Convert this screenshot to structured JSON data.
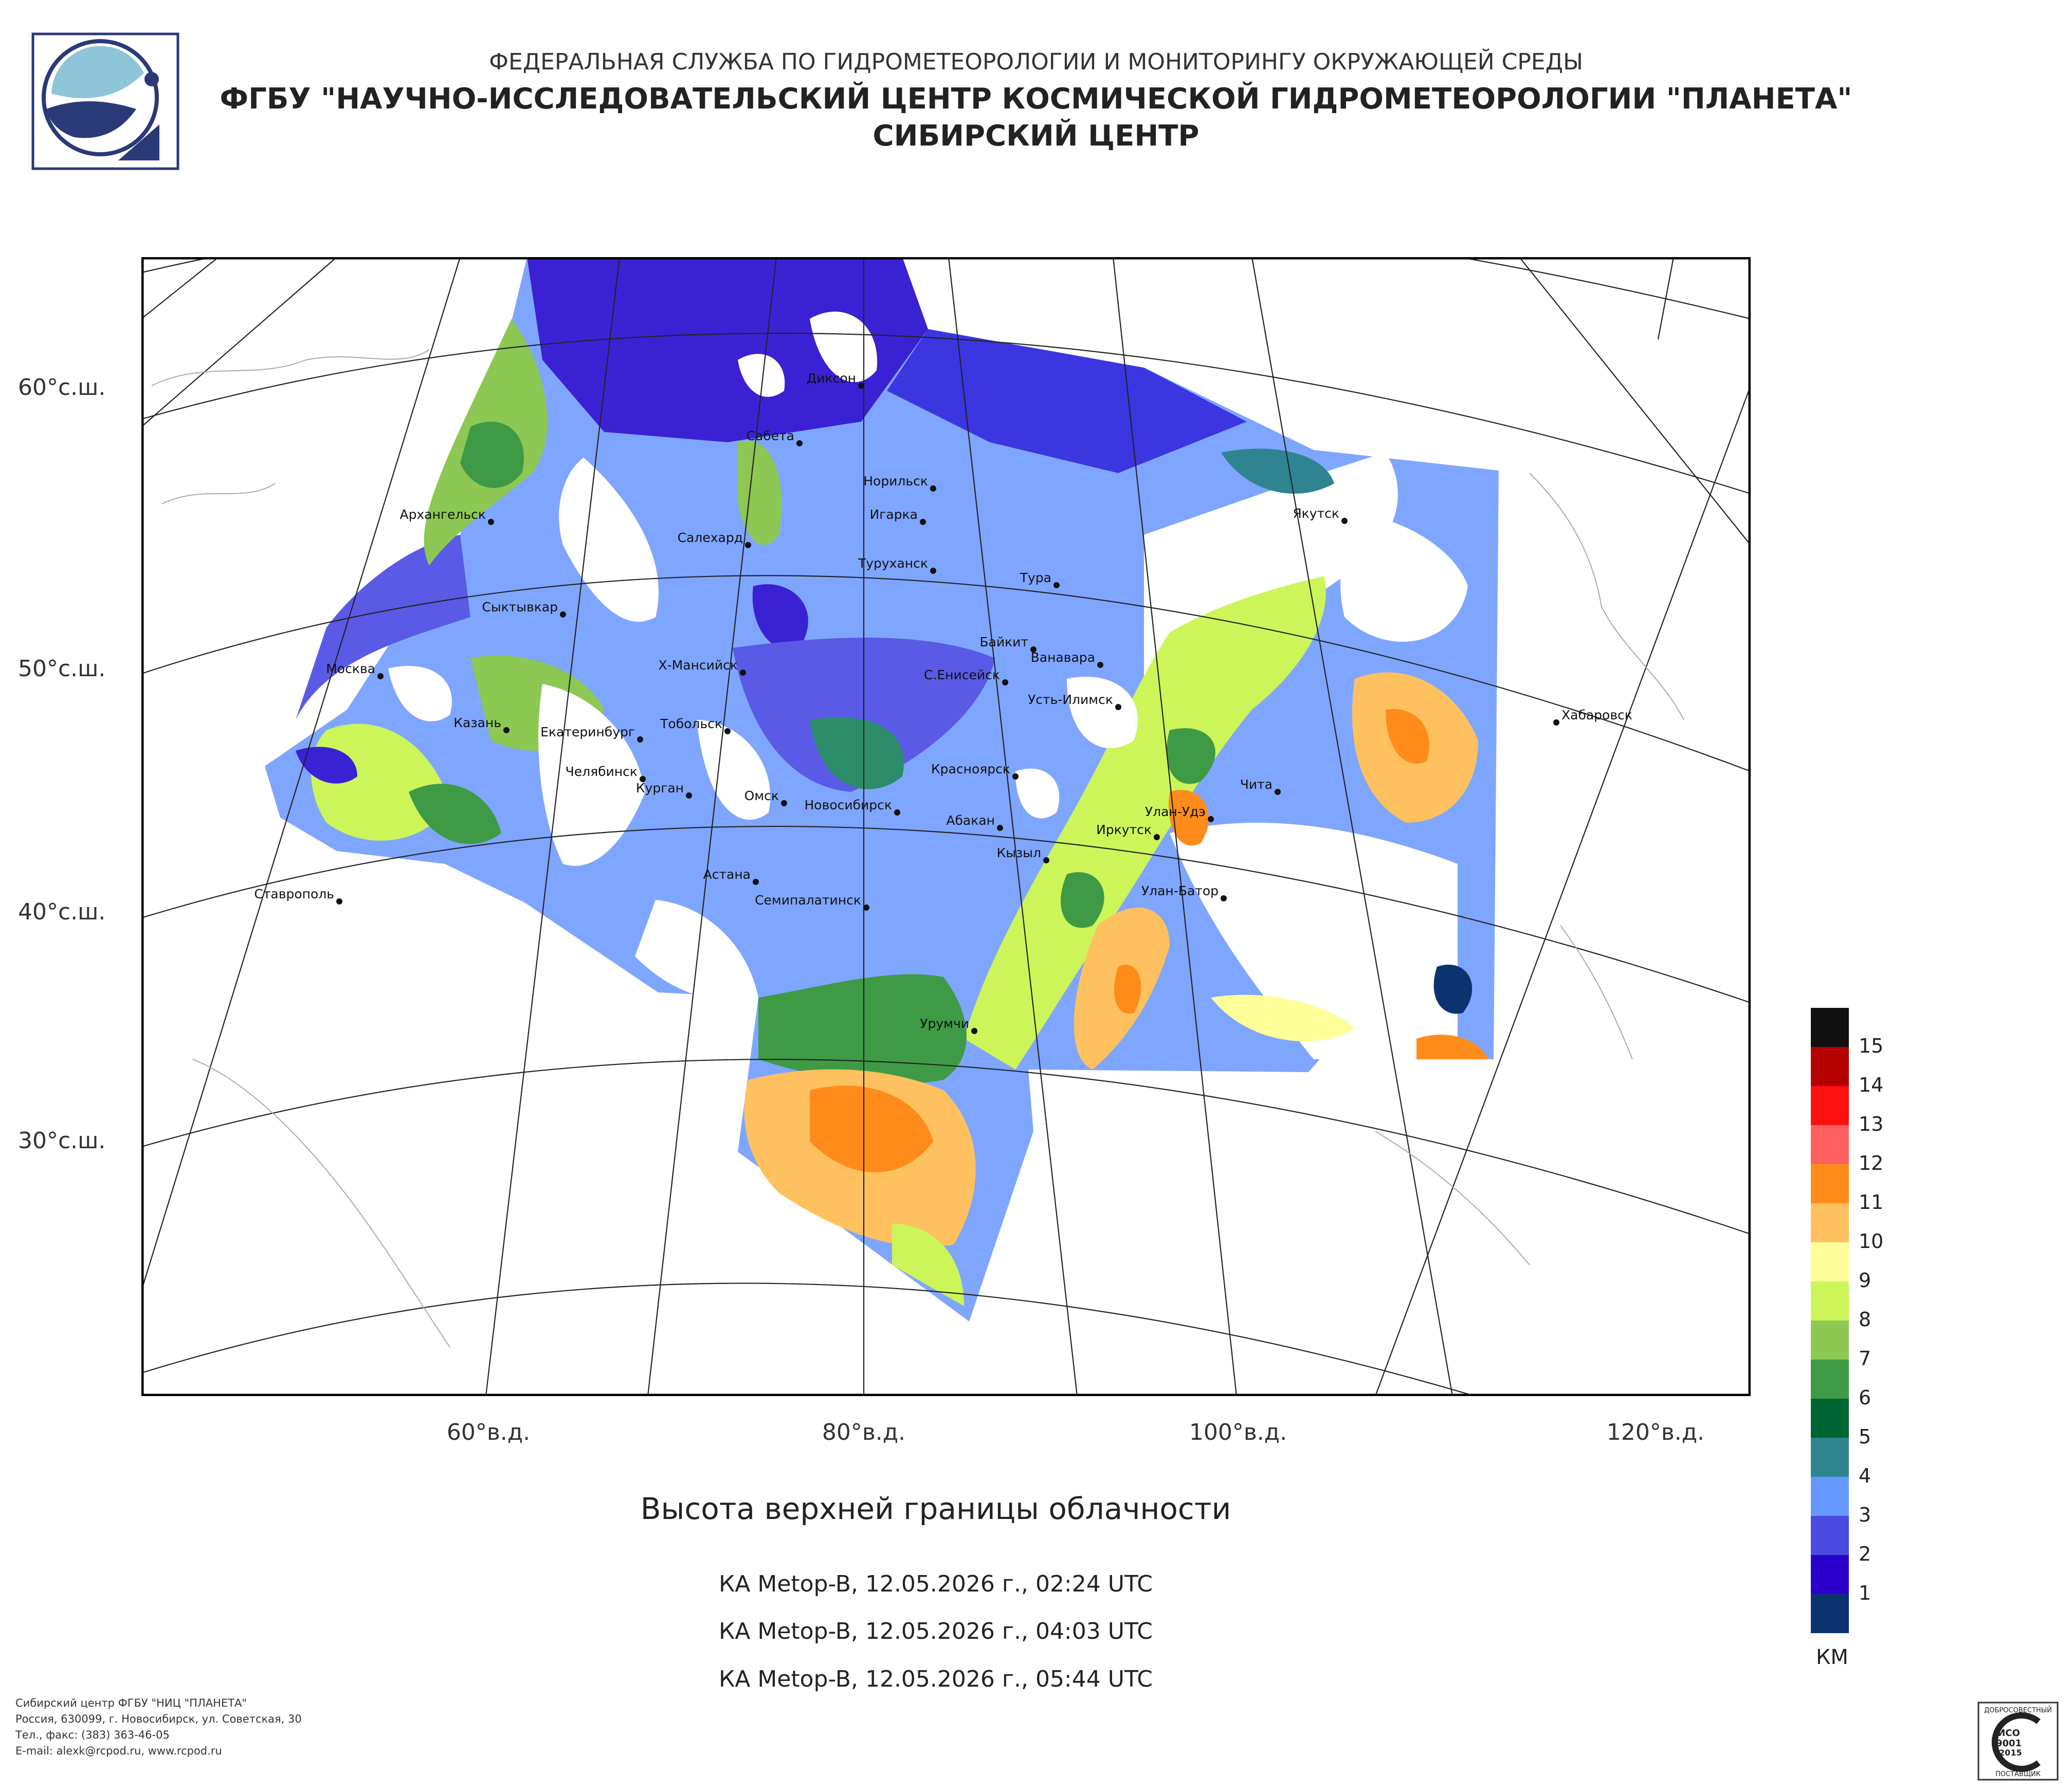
{
  "header": {
    "line1": "ФЕДЕРАЛЬНАЯ СЛУЖБА ПО ГИДРОМЕТЕОРОЛОГИИ И МОНИТОРИНГУ ОКРУЖАЮЩЕЙ СРЕДЫ",
    "line2": "ФГБУ \"НАУЧНО-ИССЛЕДОВАТЕЛЬСКИЙ ЦЕНТР КОСМИЧЕСКОЙ ГИДРОМЕТЕОРОЛОГИИ \"ПЛАНЕТА\"",
    "line3": "СИБИРСКИЙ ЦЕНТР"
  },
  "map": {
    "title": "Высота верхней границы облачности",
    "passes": [
      "КА Metop-B, 12.05.2026 г., 02:24 UTC",
      "КА Metop-B, 12.05.2026 г., 04:03 UTC",
      "КА Metop-B, 12.05.2026 г., 05:44 UTC"
    ],
    "latitude_labels": [
      "60°с.ш.",
      "50°с.ш.",
      "40°с.ш.",
      "30°с.ш."
    ],
    "longitude_labels": [
      "60°в.д.",
      "80°в.д.",
      "100°в.д.",
      "120°в.д."
    ],
    "cities": [
      "Диксон",
      "Сабета",
      "Норильск",
      "Игарка",
      "Архангельск",
      "Салехард",
      "Туруханск",
      "Тура",
      "Якутск",
      "Сыктывкар",
      "Байкит",
      "Ванавара",
      "Москва",
      "Х-Мансийск",
      "С.Енисейск",
      "Усть-Илимск",
      "Хабаровск",
      "Казань",
      "Тобольск",
      "Екатеринбург",
      "Красноярск",
      "Чита",
      "Челябинск",
      "Курган",
      "Омск",
      "Новосибирск",
      "Абакан",
      "Улан-Удэ",
      "Иркутск",
      "Кызыл",
      "Астана",
      "Ставрополь",
      "Семипалатинск",
      "Улан-Батор",
      "Урумчи"
    ]
  },
  "legend": {
    "unit": "КМ",
    "levels": [
      {
        "value": "15",
        "color": "#111111"
      },
      {
        "value": "14",
        "color": "#b50000"
      },
      {
        "value": "13",
        "color": "#ff1010"
      },
      {
        "value": "12",
        "color": "#ff6060"
      },
      {
        "value": "11",
        "color": "#ff8c1a"
      },
      {
        "value": "10",
        "color": "#ffc160"
      },
      {
        "value": "9",
        "color": "#ffff99"
      },
      {
        "value": "8",
        "color": "#ccf55a"
      },
      {
        "value": "7",
        "color": "#8cc853"
      },
      {
        "value": "6",
        "color": "#3f9a46"
      },
      {
        "value": "5",
        "color": "#006433"
      },
      {
        "value": "4",
        "color": "#2e8590"
      },
      {
        "value": "3",
        "color": "#6699ff"
      },
      {
        "value": "2",
        "color": "#4a4ae0"
      },
      {
        "value": "1",
        "color": "#2b00cc"
      },
      {
        "value": "",
        "color": "#0a3370"
      }
    ]
  },
  "footer": {
    "line1": "Сибирский центр ФГБУ \"НИЦ \"ПЛАНЕТА\"",
    "line2": "Россия, 630099, г. Новосибирск, ул. Советская, 30",
    "line3": "Тел., факс: (383) 363-46-05",
    "line4": "E-mail: alexk@rcpod.ru, www.rcpod.ru"
  },
  "iso_badge": {
    "top": "ДОБРОСОВЕСТНЫЙ",
    "l1": "ИСО",
    "l2": "9001",
    "l3": "-2015",
    "bottom": "ПОСТАВЩИК"
  }
}
